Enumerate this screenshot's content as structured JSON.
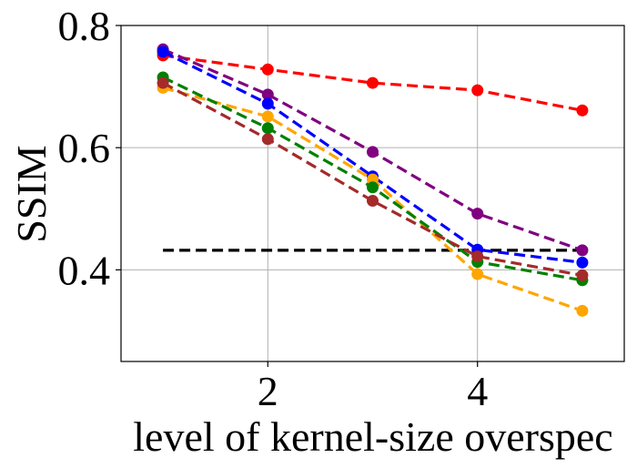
{
  "chart_data": {
    "type": "line",
    "title": "",
    "xlabel": "level of kernel-size overspec",
    "ylabel": "SSIM",
    "xlim": [
      0.6,
      5.4
    ],
    "ylim": [
      0.25,
      0.8
    ],
    "xticks": [
      2,
      4
    ],
    "xtick_labels": [
      "2",
      "4"
    ],
    "yticks": [
      0.4,
      0.6,
      0.8
    ],
    "ytick_labels": [
      "0.4",
      "0.6",
      "0.8"
    ],
    "grid": true,
    "x": [
      1,
      2,
      3,
      4,
      5
    ],
    "series": [
      {
        "name": "red",
        "color": "#ff0000",
        "values": [
          0.751,
          0.728,
          0.706,
          0.694,
          0.661
        ]
      },
      {
        "name": "purple",
        "color": "#800080",
        "values": [
          0.761,
          0.687,
          0.593,
          0.492,
          0.432
        ]
      },
      {
        "name": "blue",
        "color": "#0000ff",
        "values": [
          0.757,
          0.672,
          0.553,
          0.433,
          0.412
        ]
      },
      {
        "name": "orange",
        "color": "#ffa500",
        "values": [
          0.698,
          0.651,
          0.548,
          0.393,
          0.333
        ]
      },
      {
        "name": "green",
        "color": "#008000",
        "values": [
          0.715,
          0.632,
          0.535,
          0.413,
          0.383
        ]
      },
      {
        "name": "brown",
        "color": "#a52a2a",
        "values": [
          0.706,
          0.614,
          0.513,
          0.422,
          0.391
        ]
      }
    ],
    "baseline": {
      "name": "baseline",
      "color": "#000000",
      "value": 0.432,
      "x_range": [
        1,
        5
      ]
    }
  }
}
